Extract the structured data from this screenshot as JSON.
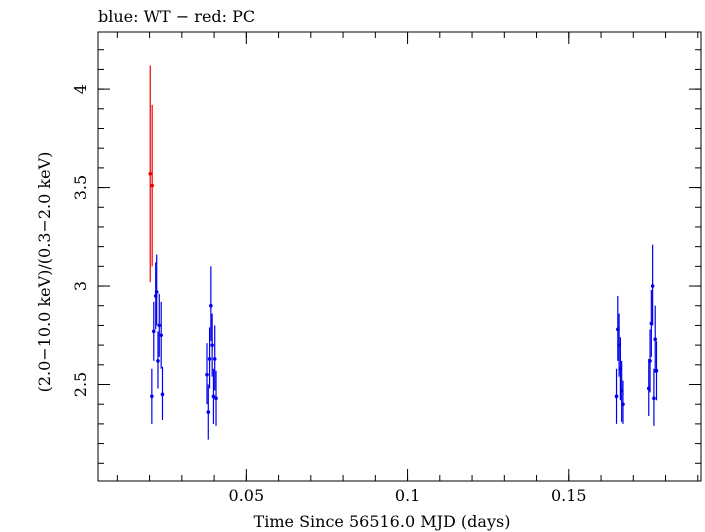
{
  "chart_data": {
    "type": "scatter",
    "title": "blue: WT − red: PC",
    "xlabel": "Time Since 56516.0 MJD (days)",
    "ylabel": "(2.0−10.0 keV)/(0.3−2.0 keV)",
    "xlim": [
      0.004,
      0.191
    ],
    "ylim": [
      2.01,
      4.29
    ],
    "x_ticks": [
      {
        "value": 0.05,
        "label": "0.05"
      },
      {
        "value": 0.1,
        "label": "0.1"
      },
      {
        "value": 0.15,
        "label": "0.15"
      }
    ],
    "y_ticks": [
      {
        "value": 2.5,
        "label": "2.5"
      },
      {
        "value": 3,
        "label": "3"
      },
      {
        "value": 3.5,
        "label": "3.5"
      },
      {
        "value": 4,
        "label": "4"
      }
    ],
    "x_minor_step": 0.01,
    "y_minor_step": 0.1,
    "grid": false,
    "series": [
      {
        "name": "WT",
        "color": "#0000ee",
        "points": [
          {
            "x": 0.0207,
            "y": 2.44,
            "lo": 2.3,
            "hi": 2.58
          },
          {
            "x": 0.0213,
            "y": 2.77,
            "lo": 2.62,
            "hi": 2.92
          },
          {
            "x": 0.0219,
            "y": 2.95,
            "lo": 2.78,
            "hi": 3.12
          },
          {
            "x": 0.0222,
            "y": 2.97,
            "lo": 2.8,
            "hi": 3.16
          },
          {
            "x": 0.0226,
            "y": 2.62,
            "lo": 2.48,
            "hi": 2.77
          },
          {
            "x": 0.023,
            "y": 2.8,
            "lo": 2.64,
            "hi": 2.96
          },
          {
            "x": 0.0236,
            "y": 2.75,
            "lo": 2.58,
            "hi": 2.92
          },
          {
            "x": 0.024,
            "y": 2.45,
            "lo": 2.32,
            "hi": 2.59
          },
          {
            "x": 0.0378,
            "y": 2.55,
            "lo": 2.4,
            "hi": 2.71
          },
          {
            "x": 0.0382,
            "y": 2.36,
            "lo": 2.22,
            "hi": 2.5
          },
          {
            "x": 0.0386,
            "y": 2.63,
            "lo": 2.48,
            "hi": 2.79
          },
          {
            "x": 0.039,
            "y": 2.9,
            "lo": 2.72,
            "hi": 3.1
          },
          {
            "x": 0.0394,
            "y": 2.7,
            "lo": 2.54,
            "hi": 2.86
          },
          {
            "x": 0.0398,
            "y": 2.44,
            "lo": 2.3,
            "hi": 2.58
          },
          {
            "x": 0.0402,
            "y": 2.63,
            "lo": 2.47,
            "hi": 2.8
          },
          {
            "x": 0.0406,
            "y": 2.43,
            "lo": 2.29,
            "hi": 2.57
          },
          {
            "x": 0.1648,
            "y": 2.44,
            "lo": 2.3,
            "hi": 2.58
          },
          {
            "x": 0.1652,
            "y": 2.78,
            "lo": 2.62,
            "hi": 2.95
          },
          {
            "x": 0.1656,
            "y": 2.7,
            "lo": 2.54,
            "hi": 2.86
          },
          {
            "x": 0.166,
            "y": 2.58,
            "lo": 2.42,
            "hi": 2.74
          },
          {
            "x": 0.1664,
            "y": 2.47,
            "lo": 2.31,
            "hi": 2.62
          },
          {
            "x": 0.1668,
            "y": 2.4,
            "lo": 2.3,
            "hi": 2.52
          },
          {
            "x": 0.1748,
            "y": 2.48,
            "lo": 2.34,
            "hi": 2.63
          },
          {
            "x": 0.1752,
            "y": 2.62,
            "lo": 2.46,
            "hi": 2.78
          },
          {
            "x": 0.1756,
            "y": 2.81,
            "lo": 2.64,
            "hi": 2.98
          },
          {
            "x": 0.176,
            "y": 3.0,
            "lo": 2.8,
            "hi": 3.21
          },
          {
            "x": 0.1764,
            "y": 2.43,
            "lo": 2.29,
            "hi": 2.58
          },
          {
            "x": 0.1768,
            "y": 2.73,
            "lo": 2.56,
            "hi": 2.9
          },
          {
            "x": 0.1772,
            "y": 2.57,
            "lo": 2.42,
            "hi": 2.72
          }
        ]
      },
      {
        "name": "PC",
        "color": "#ee0000",
        "points": [
          {
            "x": 0.0202,
            "y": 3.57,
            "lo": 3.02,
            "hi": 4.12
          },
          {
            "x": 0.0208,
            "y": 3.51,
            "lo": 3.1,
            "hi": 3.92
          }
        ]
      }
    ]
  }
}
